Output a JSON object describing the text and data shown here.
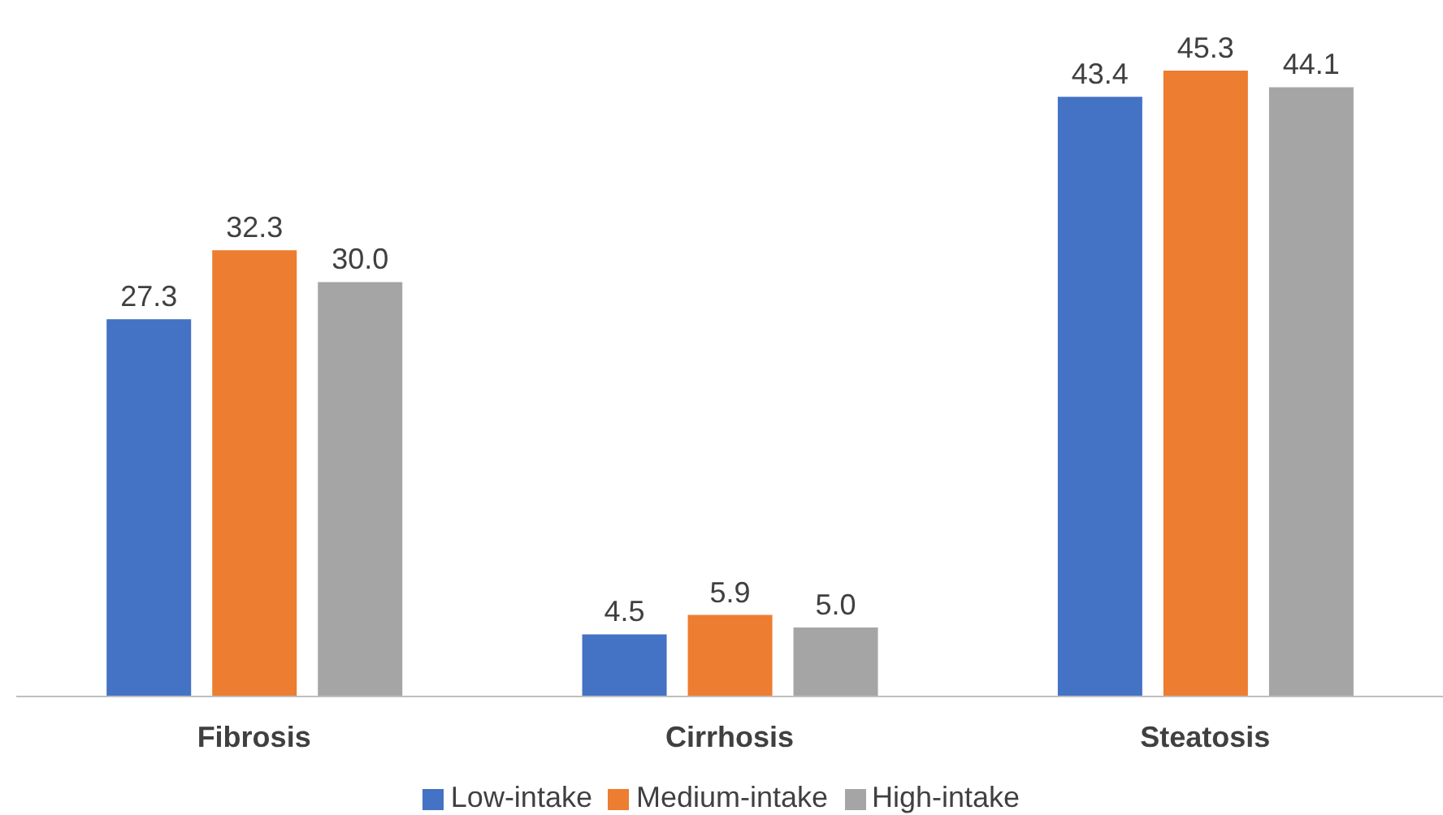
{
  "chart_data": {
    "type": "bar",
    "categories": [
      "Fibrosis",
      "Cirrhosis",
      "Steatosis"
    ],
    "series": [
      {
        "name": "Low-intake",
        "color": "#4472c4",
        "values": [
          27.3,
          4.5,
          43.4
        ],
        "value_labels": [
          "27.3",
          "4.5",
          "43.4"
        ]
      },
      {
        "name": "Medium-intake",
        "color": "#ed7d31",
        "values": [
          32.3,
          5.9,
          45.3
        ],
        "value_labels": [
          "32.3",
          "5.9",
          "45.3"
        ]
      },
      {
        "name": "High-intake",
        "color": "#a5a5a5",
        "values": [
          30,
          5,
          44.1
        ],
        "value_labels": [
          "30.0",
          "5.0",
          "44.1"
        ]
      }
    ],
    "legend": "bottom"
  }
}
